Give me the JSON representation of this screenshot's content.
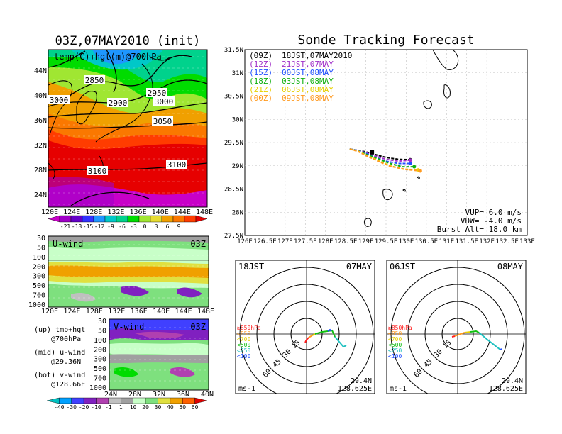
{
  "left_map": {
    "title": "03Z,07MAY2010 (init)",
    "label": "temp(C)+hgt(m)@700hPa",
    "lat_ticks": [
      "44N",
      "40N",
      "36N",
      "32N",
      "28N",
      "24N"
    ],
    "lon_ticks": [
      "120E",
      "124E",
      "128E",
      "132E",
      "136E",
      "140E",
      "144E",
      "148E"
    ],
    "contours": [
      "2850",
      "2950",
      "2900",
      "3000",
      "3000",
      "3050",
      "3100",
      "3100"
    ],
    "colorbar_ticks": [
      "-21",
      "-18",
      "-15",
      "-12",
      "-9",
      "-6",
      "-3",
      "0",
      "3",
      "6",
      "9"
    ]
  },
  "u_panel": {
    "label": "U-wind",
    "time": "03Z",
    "p_ticks": [
      "30",
      "50",
      "100",
      "200",
      "300",
      "500",
      "700",
      "1000"
    ],
    "lon_ticks": [
      "120E",
      "124E",
      "128E",
      "132E",
      "136E",
      "140E",
      "144E",
      "148E"
    ]
  },
  "v_panel": {
    "label": "V-wind",
    "time": "03Z",
    "p_ticks": [
      "30",
      "50",
      "100",
      "200",
      "300",
      "500",
      "700",
      "1000"
    ],
    "lat_ticks": [
      "24N",
      "28N",
      "32N",
      "36N",
      "40N"
    ]
  },
  "notes": [
    "(up) tmp+hgt",
    "@700hPa",
    "(mid) u-wind",
    "@29.36N",
    "(bot) v-wind",
    "@128.66E"
  ],
  "wind_colorbar_ticks": [
    "-40",
    "-30",
    "-20",
    "-10",
    "-1",
    "1",
    "10",
    "20",
    "30",
    "40",
    "50",
    "60"
  ],
  "main": {
    "title": "Sonde Tracking Forecast",
    "lat_ticks": [
      "31.5N",
      "31N",
      "30.5N",
      "30N",
      "29.5N",
      "29N",
      "28.5N",
      "28N",
      "27.5N"
    ],
    "lon_ticks": [
      "126E",
      "126.5E",
      "127E",
      "127.5E",
      "128E",
      "128.5E",
      "129E",
      "129.5E",
      "130E",
      "130.5E",
      "131E",
      "131.5E",
      "132E",
      "132.5E",
      "133E"
    ],
    "legend": [
      {
        "code": "(09Z)",
        "time": "18JST,07MAY2010",
        "color": "#000000"
      },
      {
        "code": "(12Z)",
        "time": "21JST,07MAY",
        "color": "#a030c8"
      },
      {
        "code": "(15Z)",
        "time": "00JST,08MAY",
        "color": "#2050ff"
      },
      {
        "code": "(18Z)",
        "time": "03JST,08MAY",
        "color": "#10b010"
      },
      {
        "code": "(21Z)",
        "time": "06JST,08MAY",
        "color": "#e8d000"
      },
      {
        "code": "(00Z)",
        "time": "09JST,08MAY",
        "color": "#ff9a20"
      }
    ],
    "params": [
      "VUP=  6.0 m/s",
      "VDW= -4.0 m/s",
      "Burst Alt= 18.0 km"
    ]
  },
  "chart_data": {
    "type": "line",
    "title": "Sonde Tracking Forecast",
    "xlim": [
      126,
      133
    ],
    "ylim": [
      27.5,
      31.5
    ],
    "series": [
      {
        "name": "(09Z) 18JST,07MAY2010",
        "color": "#000000",
        "x": [
          128.6,
          128.8,
          129.0,
          129.2,
          129.5,
          129.8,
          130.1
        ],
        "y": [
          29.36,
          29.33,
          29.3,
          29.25,
          29.18,
          29.14,
          29.13
        ]
      },
      {
        "name": "(12Z) 21JST,07MAY",
        "color": "#a030c8",
        "x": [
          128.6,
          128.8,
          129.0,
          129.2,
          129.5,
          129.8,
          130.1
        ],
        "y": [
          29.36,
          29.33,
          29.28,
          29.22,
          29.14,
          29.1,
          29.12
        ]
      },
      {
        "name": "(15Z) 00JST,08MAY",
        "color": "#2050ff",
        "x": [
          128.6,
          128.8,
          129.0,
          129.2,
          129.5,
          129.8,
          130.1
        ],
        "y": [
          29.36,
          29.33,
          29.27,
          29.19,
          29.1,
          29.05,
          29.05
        ]
      },
      {
        "name": "(18Z) 03JST,08MAY",
        "color": "#10b010",
        "x": [
          128.6,
          128.8,
          129.0,
          129.3,
          129.6,
          129.9,
          130.2
        ],
        "y": [
          29.36,
          29.32,
          29.25,
          29.15,
          29.05,
          28.98,
          28.98
        ]
      },
      {
        "name": "(21Z) 06JST,08MAY",
        "color": "#e8d000",
        "x": [
          128.6,
          128.8,
          129.0,
          129.3,
          129.6,
          129.9,
          130.3
        ],
        "y": [
          29.36,
          29.32,
          29.23,
          29.12,
          29.0,
          28.93,
          28.91
        ]
      },
      {
        "name": "(00Z) 09JST,08MAY",
        "color": "#ff9a20",
        "x": [
          128.6,
          128.8,
          129.0,
          129.3,
          129.6,
          130.0,
          130.35
        ],
        "y": [
          29.36,
          29.31,
          29.22,
          29.1,
          28.99,
          28.92,
          28.89
        ]
      }
    ],
    "grid": true
  },
  "hodo_left": {
    "time": "18JST",
    "date": "07MAY",
    "lat": "29.4N",
    "lon": "128.625E",
    "unit": "ms-1",
    "rings": [
      "15",
      "30",
      "45",
      "60"
    ],
    "levels": [
      {
        "label": "≥850hPa",
        "color": "#ff2020"
      },
      {
        "label": "<850",
        "color": "#ff9a20"
      },
      {
        "label": "<700",
        "color": "#e8d000"
      },
      {
        "label": "<500",
        "color": "#10c010"
      },
      {
        "label": "<250",
        "color": "#20c0c0"
      },
      {
        "label": "<100",
        "color": "#2050ff"
      }
    ]
  },
  "hodo_right": {
    "time": "06JST",
    "date": "08MAY",
    "lat": "29.4N",
    "lon": "128.625E",
    "unit": "ms-1",
    "rings": [
      "15",
      "30",
      "45",
      "60"
    ],
    "levels": [
      {
        "label": "≥850hPa",
        "color": "#ff2020"
      },
      {
        "label": "<850",
        "color": "#ff9a20"
      },
      {
        "label": "<700",
        "color": "#e8d000"
      },
      {
        "label": "<500",
        "color": "#10c010"
      },
      {
        "label": "<250",
        "color": "#20c0c0"
      },
      {
        "label": "<100",
        "color": "#2050ff"
      }
    ]
  },
  "colors": {
    "colorbar": [
      "#c800c8",
      "#a000c8",
      "#6400c8",
      "#3232ff",
      "#1e96ff",
      "#00c8c8",
      "#00d28c",
      "#00dc00",
      "#a0e632",
      "#e6dc32",
      "#f0a000",
      "#fa7800",
      "#ff3c00",
      "#e60000"
    ],
    "wind": [
      "#00c0c0",
      "#00a0ff",
      "#4040ff",
      "#8020c0",
      "#b040b0",
      "#c0c0c0",
      "#a0a0a0",
      "#c8ffc8",
      "#7ee07e",
      "#e0e040",
      "#f0a000",
      "#ff6000",
      "#e00000"
    ]
  }
}
